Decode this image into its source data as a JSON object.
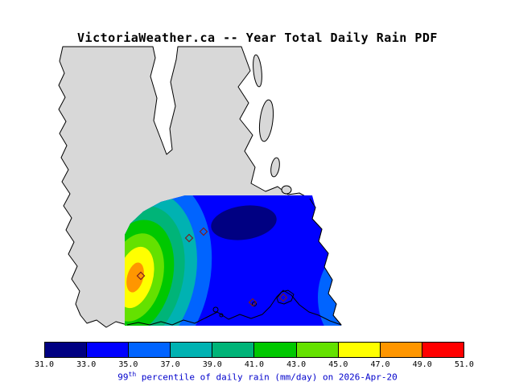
{
  "title": "VictoriaWeather.ca -- Year Total Daily Rain PDF",
  "caption": {
    "prefix": "99",
    "sup": "th",
    "rest": " percentile of daily rain (mm/day) on 2026-Apr-20",
    "color": "#0000cc"
  },
  "colorbar": {
    "ticks": [
      "31.0",
      "33.0",
      "35.0",
      "37.0",
      "39.0",
      "41.0",
      "43.0",
      "45.0",
      "47.0",
      "49.0",
      "51.0"
    ],
    "colors": [
      "#000082",
      "#0000ff",
      "#0064ff",
      "#00b2b2",
      "#00b478",
      "#00c800",
      "#64e100",
      "#ffff00",
      "#ff9600",
      "#ff0000"
    ]
  },
  "map": {
    "land_color": "#d8d8d8",
    "water_color": "#ffffff",
    "coast_color": "#000000",
    "station_marker_count": 5
  },
  "chart_data": {
    "type": "heatmap",
    "title": "VictoriaWeather.ca -- Year Total Daily Rain PDF",
    "variable": "99th percentile of daily rain",
    "units": "mm/day",
    "date": "2026-Apr-20",
    "colorbar_levels": [
      31.0,
      33.0,
      35.0,
      37.0,
      39.0,
      41.0,
      43.0,
      45.0,
      47.0,
      49.0,
      51.0
    ],
    "colorbar_colors": [
      "#000082",
      "#0000ff",
      "#0064ff",
      "#00b2b2",
      "#00b478",
      "#00c800",
      "#64e100",
      "#ffff00",
      "#ff9600",
      "#ff0000"
    ],
    "value_range": [
      31.0,
      51.0
    ],
    "legend_position": "bottom",
    "spatial_pattern": [
      {
        "region": "west side of shaded area",
        "value_mm_day": "47-49",
        "description": "local maximum: orange core ringed by yellow, green and teal bands"
      },
      {
        "region": "upper east-central shaded area",
        "value_mm_day": "31-33",
        "description": "dark navy local minimum blob"
      },
      {
        "region": "remaining eastern shaded area",
        "value_mm_day": "33-35",
        "description": "broad blue field, slightly lighter blue along the southeast coast"
      }
    ]
  }
}
